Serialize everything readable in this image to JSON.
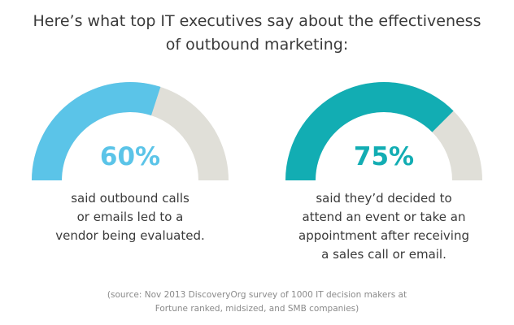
{
  "title": {
    "line1": "Here’s what top IT executives say about the effectiveness",
    "line2": "of outbound marketing:"
  },
  "colors": {
    "track": "#e0dfd8",
    "gauge1": "#5bc4e8",
    "gauge2": "#12adb3"
  },
  "chart_data": [
    {
      "type": "gauge",
      "value": 60,
      "max": 100,
      "label": "60%",
      "description": [
        "said outbound calls",
        "or emails led to a",
        "vendor being evaluated."
      ]
    },
    {
      "type": "gauge",
      "value": 75,
      "max": 100,
      "label": "75%",
      "description": [
        "said they’d decided to",
        "attend an event or take an",
        "appointment after receiving",
        "a sales call or email."
      ]
    }
  ],
  "source": {
    "line1": "(source: Nov 2013 DiscoveryOrg survey of 1000 IT decision makers at",
    "line2": "Fortune ranked, midsized, and SMB companies)"
  }
}
